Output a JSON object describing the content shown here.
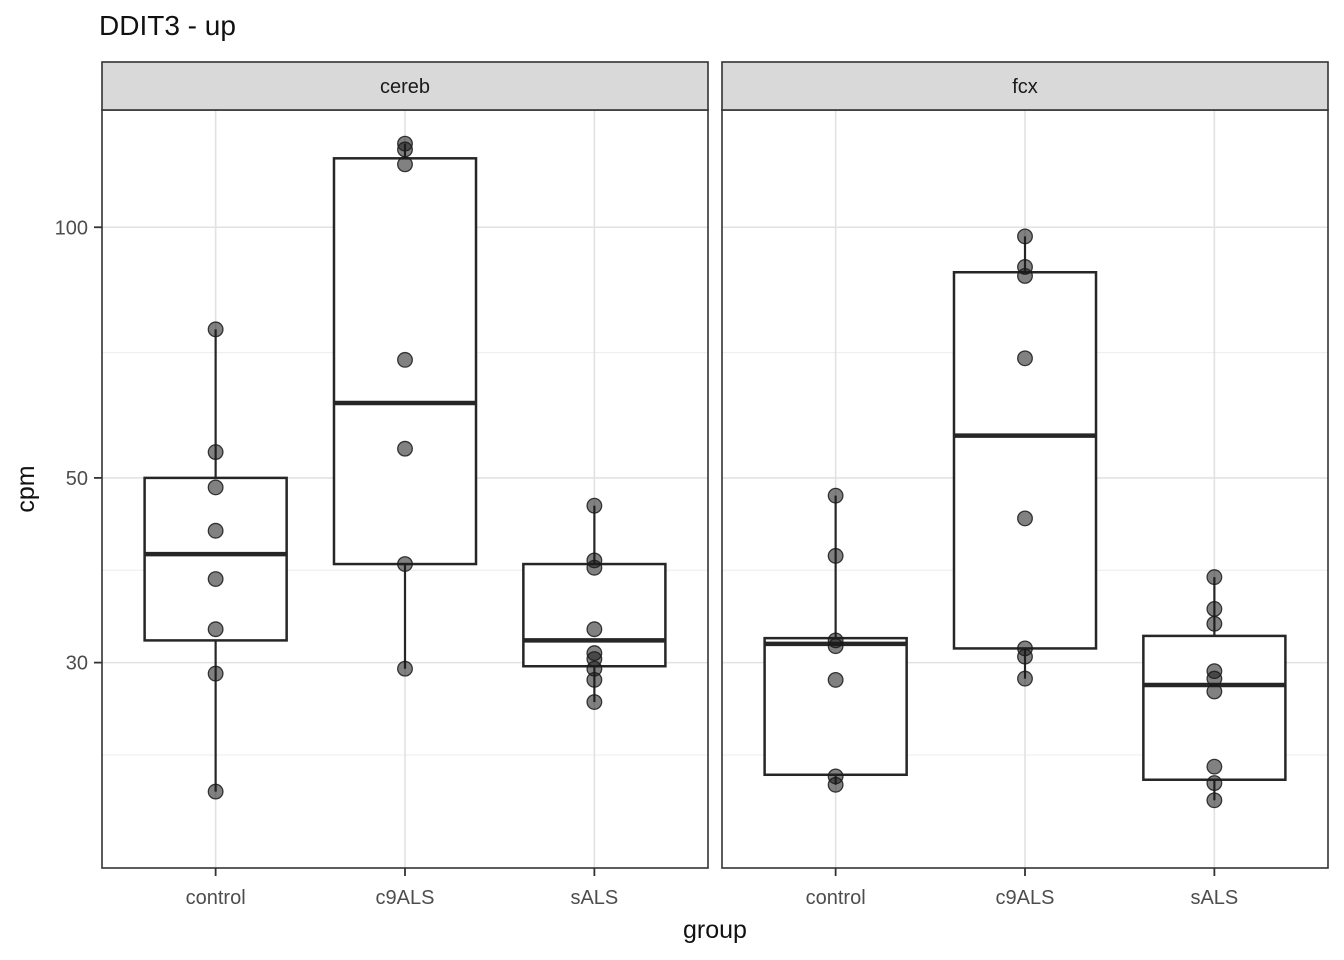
{
  "title": "DDIT3 - up",
  "chart_data": {
    "type": "boxplot",
    "title": "DDIT3 - up",
    "xlabel": "group",
    "ylabel": "cpm",
    "y_scale": "log10",
    "ylim": [
      17.0,
      138.3
    ],
    "y_ticks": [
      30,
      50,
      100
    ],
    "y_tick_labels": [
      "30",
      "50",
      "100"
    ],
    "y_minor_breaks": [
      23.24,
      38.73,
      70.71,
      141.42
    ],
    "grid": "on",
    "legend": "none",
    "categories": [
      "control",
      "c9ALS",
      "sALS"
    ],
    "facets": [
      {
        "label": "cereb",
        "groups": [
          {
            "category": "control",
            "q1": 31.9,
            "median": 40.5,
            "q3": 50.0,
            "whisker_low": 21.0,
            "whisker_high": 75.4,
            "points": [
              75.4,
              53.7,
              48.7,
              43.2,
              37.8,
              32.9,
              29.1,
              21.0
            ]
          },
          {
            "category": "c9ALS",
            "q1": 39.4,
            "median": 61.5,
            "q3": 121.0,
            "whisker_low": 29.5,
            "whisker_high": 126.0,
            "points": [
              126.0,
              124.0,
              119.0,
              69.3,
              54.2,
              39.4,
              29.5
            ]
          },
          {
            "category": "sALS",
            "q1": 29.7,
            "median": 31.9,
            "q3": 39.4,
            "whisker_low": 26.9,
            "whisker_high": 46.3,
            "points": [
              46.3,
              39.8,
              39.0,
              32.9,
              30.8,
              30.3,
              29.5,
              28.6,
              26.9
            ]
          }
        ]
      },
      {
        "label": "fcx",
        "groups": [
          {
            "category": "control",
            "q1": 22.0,
            "median": 31.6,
            "q3": 32.1,
            "whisker_low": 21.4,
            "whisker_high": 47.6,
            "points": [
              47.6,
              40.3,
              31.9,
              31.4,
              28.6,
              21.9,
              21.4
            ]
          },
          {
            "category": "c9ALS",
            "q1": 31.2,
            "median": 56.2,
            "q3": 88.3,
            "whisker_low": 28.7,
            "whisker_high": 97.5,
            "points": [
              97.5,
              89.6,
              87.4,
              69.6,
              44.7,
              31.2,
              30.5,
              28.7
            ]
          },
          {
            "category": "sALS",
            "q1": 21.7,
            "median": 28.2,
            "q3": 32.3,
            "whisker_low": 20.5,
            "whisker_high": 38.0,
            "points": [
              38.0,
              34.8,
              33.4,
              29.3,
              28.7,
              27.7,
              22.5,
              21.5,
              20.5
            ]
          }
        ]
      }
    ]
  },
  "colors": {
    "strip_fill": "#d9d9d9",
    "panel_border": "#333333",
    "grid_major": "#e2e2e2",
    "grid_minor": "#efefef",
    "box_stroke": "#262626",
    "box_fill": "#ffffff",
    "point": "#1a1a1a",
    "tick_text": "#4d4d4d",
    "axis_text": "#111111"
  }
}
